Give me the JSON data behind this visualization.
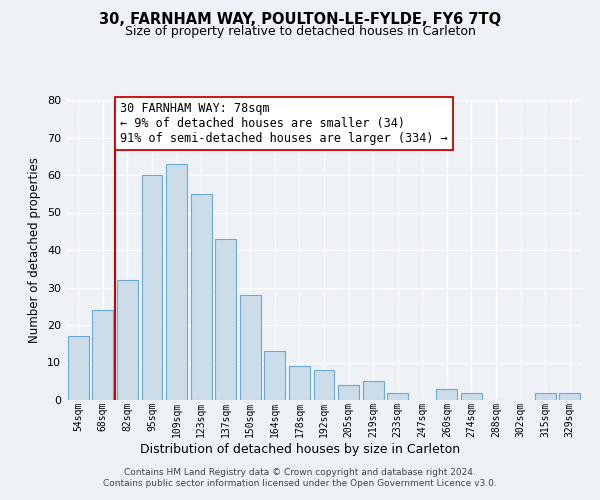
{
  "title1": "30, FARNHAM WAY, POULTON-LE-FYLDE, FY6 7TQ",
  "title2": "Size of property relative to detached houses in Carleton",
  "xlabel": "Distribution of detached houses by size in Carleton",
  "ylabel": "Number of detached properties",
  "bar_labels": [
    "54sqm",
    "68sqm",
    "82sqm",
    "95sqm",
    "109sqm",
    "123sqm",
    "137sqm",
    "150sqm",
    "164sqm",
    "178sqm",
    "192sqm",
    "205sqm",
    "219sqm",
    "233sqm",
    "247sqm",
    "260sqm",
    "274sqm",
    "288sqm",
    "302sqm",
    "315sqm",
    "329sqm"
  ],
  "bar_values": [
    17,
    24,
    32,
    60,
    63,
    55,
    43,
    28,
    13,
    9,
    8,
    4,
    5,
    2,
    0,
    3,
    2,
    0,
    0,
    2,
    2
  ],
  "bar_color": "#ccdce8",
  "bar_edge_color": "#6baad4",
  "vline_color": "#cc0000",
  "annotation_text": "30 FARNHAM WAY: 78sqm\n← 9% of detached houses are smaller (34)\n91% of semi-detached houses are larger (334) →",
  "annotation_box_color": "#ffffff",
  "annotation_box_edge": "#cc0000",
  "ylim": [
    0,
    80
  ],
  "yticks": [
    0,
    10,
    20,
    30,
    40,
    50,
    60,
    70,
    80
  ],
  "footer": "Contains HM Land Registry data © Crown copyright and database right 2024.\nContains public sector information licensed under the Open Government Licence v3.0.",
  "bg_color": "#eef2f7",
  "grid_color": "#ffffff",
  "title1_fontsize": 10.5,
  "title2_fontsize": 9.0
}
